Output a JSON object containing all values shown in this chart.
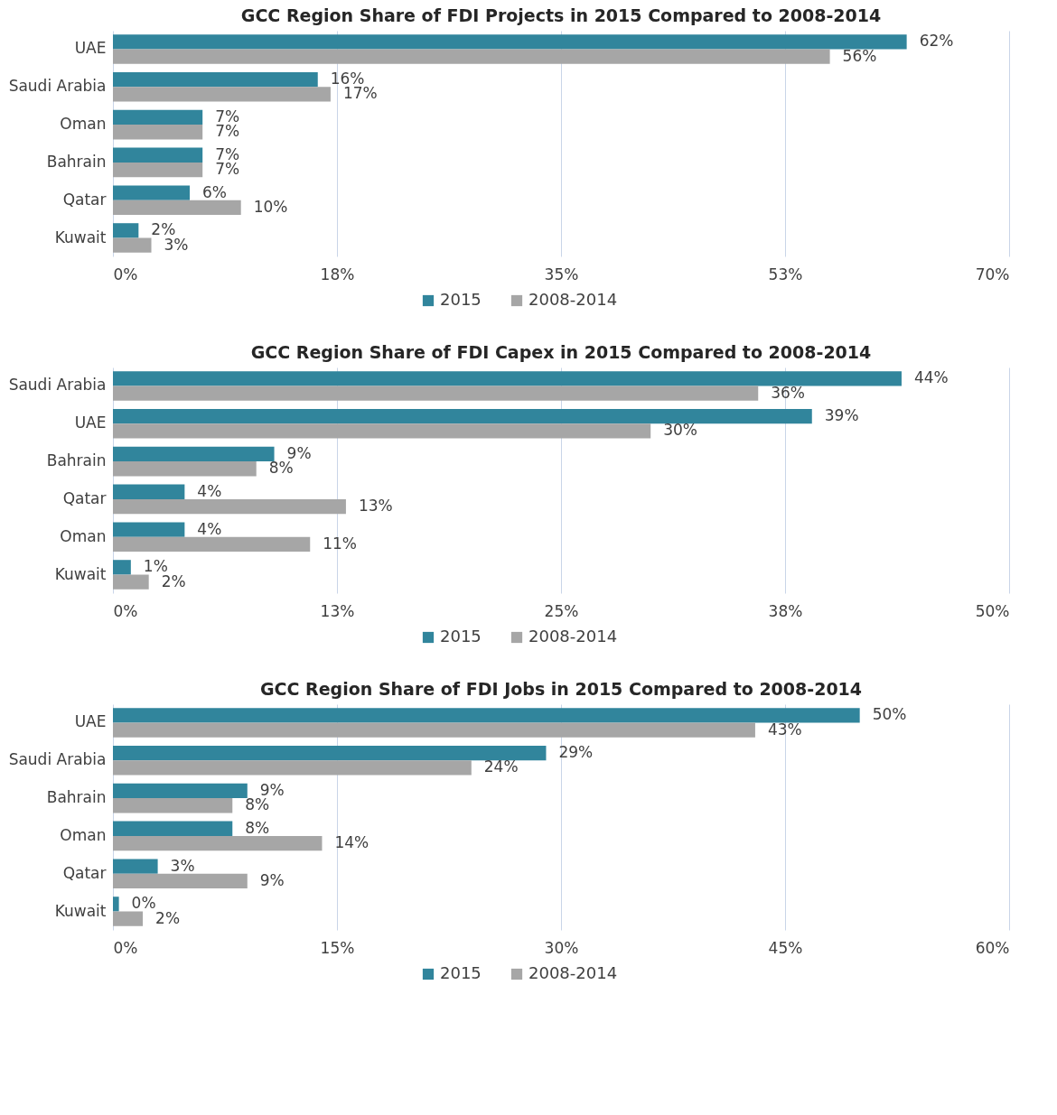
{
  "chart_data": [
    {
      "type": "bar",
      "orientation": "horizontal",
      "title": "GCC Region Share of FDI Projects in 2015 Compared to 2008-2014",
      "categories": [
        "UAE",
        "Saudi Arabia",
        "Oman",
        "Bahrain",
        "Qatar",
        "Kuwait"
      ],
      "series": [
        {
          "name": "2015",
          "color": "#31859c",
          "values": [
            62,
            16,
            7,
            7,
            6,
            2
          ],
          "value_labels": [
            "62%",
            "16%",
            "7%",
            "7%",
            "6%",
            "2%"
          ]
        },
        {
          "name": "2008-2014",
          "color": "#a6a6a6",
          "values": [
            56,
            17,
            7,
            7,
            10,
            3
          ],
          "value_labels": [
            "56%",
            "17%",
            "7%",
            "7%",
            "10%",
            "3%"
          ]
        }
      ],
      "xlim": [
        0,
        70
      ],
      "xticks": [
        {
          "value": 0,
          "label": "0%"
        },
        {
          "value": 17.5,
          "label": "18%"
        },
        {
          "value": 35,
          "label": "35%"
        },
        {
          "value": 52.5,
          "label": "53%"
        },
        {
          "value": 70,
          "label": "70%"
        }
      ],
      "grid": "x",
      "legend": "bottom"
    },
    {
      "type": "bar",
      "orientation": "horizontal",
      "title": "GCC Region Share of FDI Capex in 2015 Compared to 2008-2014",
      "categories": [
        "Saudi Arabia",
        "UAE",
        "Bahrain",
        "Qatar",
        "Oman",
        "Kuwait"
      ],
      "series": [
        {
          "name": "2015",
          "color": "#31859c",
          "values": [
            44,
            39,
            9,
            4,
            4,
            1
          ],
          "value_labels": [
            "44%",
            "39%",
            "9%",
            "4%",
            "4%",
            "1%"
          ]
        },
        {
          "name": "2008-2014",
          "color": "#a6a6a6",
          "values": [
            36,
            30,
            8,
            13,
            11,
            2
          ],
          "value_labels": [
            "36%",
            "30%",
            "8%",
            "13%",
            "11%",
            "2%"
          ]
        }
      ],
      "xlim": [
        0,
        50
      ],
      "xticks": [
        {
          "value": 0,
          "label": "0%"
        },
        {
          "value": 12.5,
          "label": "13%"
        },
        {
          "value": 25,
          "label": "25%"
        },
        {
          "value": 37.5,
          "label": "38%"
        },
        {
          "value": 50,
          "label": "50%"
        }
      ],
      "grid": "x",
      "legend": "bottom"
    },
    {
      "type": "bar",
      "orientation": "horizontal",
      "title": "GCC Region Share of FDI Jobs in 2015 Compared to 2008-2014",
      "categories": [
        "UAE",
        "Saudi Arabia",
        "Bahrain",
        "Oman",
        "Qatar",
        "Kuwait"
      ],
      "series": [
        {
          "name": "2015",
          "color": "#31859c",
          "values": [
            50,
            29,
            9,
            8,
            3,
            0.4
          ],
          "value_labels": [
            "50%",
            "29%",
            "9%",
            "8%",
            "3%",
            "0%"
          ]
        },
        {
          "name": "2008-2014",
          "color": "#a6a6a6",
          "values": [
            43,
            24,
            8,
            14,
            9,
            2
          ],
          "value_labels": [
            "43%",
            "24%",
            "8%",
            "14%",
            "9%",
            "2%"
          ]
        }
      ],
      "xlim": [
        0,
        60
      ],
      "xticks": [
        {
          "value": 0,
          "label": "0%"
        },
        {
          "value": 15,
          "label": "15%"
        },
        {
          "value": 30,
          "label": "30%"
        },
        {
          "value": 45,
          "label": "45%"
        },
        {
          "value": 60,
          "label": "60%"
        }
      ],
      "grid": "x",
      "legend": "bottom"
    }
  ]
}
